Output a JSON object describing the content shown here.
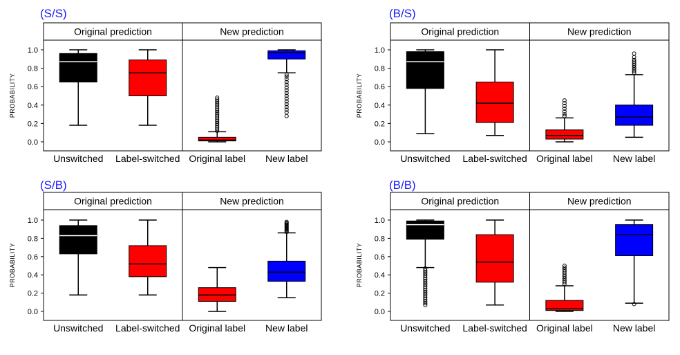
{
  "figure": {
    "colors": {
      "unswitched": "#000000",
      "label_switched": "#ff0000",
      "original_label": "#ff0000",
      "new_label": "#0000ff",
      "panel_label": "#1a1aff"
    },
    "yaxis_label": "PROBABILITY",
    "section_headers": [
      "Original prediction",
      "New prediction"
    ],
    "box_labels": [
      "Unswitched",
      "Label-switched",
      "Original label",
      "New label"
    ],
    "yticks": [
      "0.0",
      "0.2",
      "0.4",
      "0.6",
      "0.8",
      "1.0"
    ]
  },
  "chart_data": [
    {
      "type": "box",
      "title": "(S/S)",
      "ylim": [
        -0.08,
        1.1
      ],
      "ylabel": "PROBABILITY",
      "categories": [
        "Unswitched",
        "Label-switched",
        "Original label",
        "New label"
      ],
      "groups": [
        "Original prediction",
        "Original prediction",
        "New prediction",
        "New prediction"
      ],
      "boxes": [
        {
          "whisker_low": 0.18,
          "q1": 0.65,
          "median": 0.87,
          "q3": 0.96,
          "whisker_high": 1.0,
          "outliers": []
        },
        {
          "whisker_low": 0.18,
          "q1": 0.5,
          "median": 0.75,
          "q3": 0.89,
          "whisker_high": 1.0,
          "outliers": []
        },
        {
          "whisker_low": 0.0,
          "q1": 0.01,
          "median": 0.02,
          "q3": 0.05,
          "whisker_high": 0.11,
          "outliers": [
            0.12,
            0.14,
            0.16,
            0.18,
            0.2,
            0.22,
            0.24,
            0.26,
            0.28,
            0.3,
            0.32,
            0.34,
            0.36,
            0.38,
            0.4,
            0.42,
            0.44,
            0.46,
            0.48
          ]
        },
        {
          "whisker_low": 0.75,
          "q1": 0.9,
          "median": 0.97,
          "q3": 0.99,
          "whisker_high": 1.0,
          "outliers": [
            0.28,
            0.32,
            0.35,
            0.38,
            0.41,
            0.44,
            0.47,
            0.5,
            0.53,
            0.56,
            0.59,
            0.62,
            0.65,
            0.68,
            0.71,
            0.73
          ]
        }
      ]
    },
    {
      "type": "box",
      "title": "(B/S)",
      "ylim": [
        -0.08,
        1.1
      ],
      "ylabel": "PROBABILITY",
      "categories": [
        "Unswitched",
        "Label-switched",
        "Original label",
        "New label"
      ],
      "groups": [
        "Original prediction",
        "Original prediction",
        "New prediction",
        "New prediction"
      ],
      "boxes": [
        {
          "whisker_low": 0.09,
          "q1": 0.58,
          "median": 0.87,
          "q3": 0.98,
          "whisker_high": 1.0,
          "outliers": []
        },
        {
          "whisker_low": 0.07,
          "q1": 0.21,
          "median": 0.42,
          "q3": 0.65,
          "whisker_high": 1.0,
          "outliers": []
        },
        {
          "whisker_low": 0.0,
          "q1": 0.03,
          "median": 0.07,
          "q3": 0.13,
          "whisker_high": 0.26,
          "outliers": [
            0.28,
            0.3,
            0.33,
            0.36,
            0.39,
            0.42,
            0.45
          ]
        },
        {
          "whisker_low": 0.05,
          "q1": 0.18,
          "median": 0.27,
          "q3": 0.4,
          "whisker_high": 0.73,
          "outliers": [
            0.75,
            0.77,
            0.79,
            0.81,
            0.83,
            0.85,
            0.87,
            0.89,
            0.92,
            0.96
          ]
        }
      ]
    },
    {
      "type": "box",
      "title": "(S/B)",
      "ylim": [
        -0.08,
        1.1
      ],
      "ylabel": "PROBABILITY",
      "categories": [
        "Unswitched",
        "Label-switched",
        "Original label",
        "New label"
      ],
      "groups": [
        "Original prediction",
        "Original prediction",
        "New prediction",
        "New prediction"
      ],
      "boxes": [
        {
          "whisker_low": 0.18,
          "q1": 0.63,
          "median": 0.83,
          "q3": 0.94,
          "whisker_high": 1.0,
          "outliers": []
        },
        {
          "whisker_low": 0.18,
          "q1": 0.38,
          "median": 0.52,
          "q3": 0.72,
          "whisker_high": 1.0,
          "outliers": []
        },
        {
          "whisker_low": 0.0,
          "q1": 0.11,
          "median": 0.18,
          "q3": 0.26,
          "whisker_high": 0.48,
          "outliers": []
        },
        {
          "whisker_low": 0.15,
          "q1": 0.33,
          "median": 0.43,
          "q3": 0.55,
          "whisker_high": 0.86,
          "outliers": [
            0.87,
            0.88,
            0.89,
            0.9,
            0.91,
            0.92,
            0.93,
            0.94,
            0.95,
            0.96,
            0.97,
            0.98
          ]
        }
      ]
    },
    {
      "type": "box",
      "title": "(B/B)",
      "ylim": [
        -0.08,
        1.1
      ],
      "ylabel": "PROBABILITY",
      "categories": [
        "Unswitched",
        "Label-switched",
        "Original label",
        "New label"
      ],
      "groups": [
        "Original prediction",
        "Original prediction",
        "New prediction",
        "New prediction"
      ],
      "boxes": [
        {
          "whisker_low": 0.48,
          "q1": 0.79,
          "median": 0.95,
          "q3": 0.99,
          "whisker_high": 1.0,
          "outliers": [
            0.07,
            0.09,
            0.11,
            0.13,
            0.15,
            0.17,
            0.19,
            0.21,
            0.23,
            0.25,
            0.27,
            0.29,
            0.31,
            0.33,
            0.35,
            0.37,
            0.39,
            0.41,
            0.43,
            0.45,
            0.47
          ]
        },
        {
          "whisker_low": 0.07,
          "q1": 0.32,
          "median": 0.54,
          "q3": 0.84,
          "whisker_high": 1.0,
          "outliers": []
        },
        {
          "whisker_low": 0.0,
          "q1": 0.01,
          "median": 0.03,
          "q3": 0.12,
          "whisker_high": 0.28,
          "outliers": [
            0.3,
            0.32,
            0.34,
            0.36,
            0.38,
            0.4,
            0.42,
            0.44,
            0.46,
            0.48,
            0.5
          ]
        },
        {
          "whisker_low": 0.09,
          "q1": 0.61,
          "median": 0.84,
          "q3": 0.95,
          "whisker_high": 1.0,
          "outliers": [
            0.08
          ]
        }
      ]
    }
  ]
}
